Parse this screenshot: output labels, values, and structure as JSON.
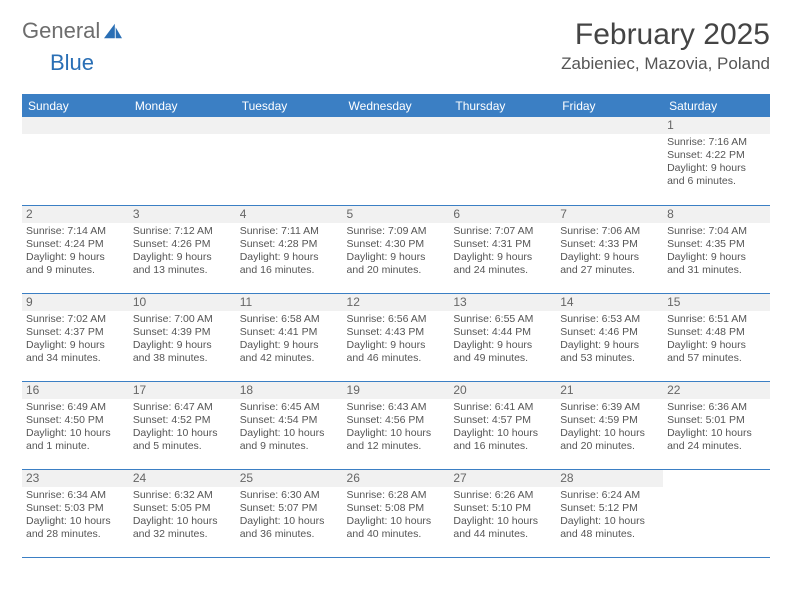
{
  "brand": {
    "part1": "General",
    "part2": "Blue"
  },
  "title": "February 2025",
  "location": "Zabieniec, Mazovia, Poland",
  "colors": {
    "accent": "#3b7fc4",
    "text": "#555555",
    "headGray": "#f1f1f1"
  },
  "dayHeaders": [
    "Sunday",
    "Monday",
    "Tuesday",
    "Wednesday",
    "Thursday",
    "Friday",
    "Saturday"
  ],
  "weeks": [
    [
      null,
      null,
      null,
      null,
      null,
      null,
      {
        "n": "1",
        "sr": "Sunrise: 7:16 AM",
        "ss": "Sunset: 4:22 PM",
        "dl": "Daylight: 9 hours and 6 minutes."
      }
    ],
    [
      {
        "n": "2",
        "sr": "Sunrise: 7:14 AM",
        "ss": "Sunset: 4:24 PM",
        "dl": "Daylight: 9 hours and 9 minutes."
      },
      {
        "n": "3",
        "sr": "Sunrise: 7:12 AM",
        "ss": "Sunset: 4:26 PM",
        "dl": "Daylight: 9 hours and 13 minutes."
      },
      {
        "n": "4",
        "sr": "Sunrise: 7:11 AM",
        "ss": "Sunset: 4:28 PM",
        "dl": "Daylight: 9 hours and 16 minutes."
      },
      {
        "n": "5",
        "sr": "Sunrise: 7:09 AM",
        "ss": "Sunset: 4:30 PM",
        "dl": "Daylight: 9 hours and 20 minutes."
      },
      {
        "n": "6",
        "sr": "Sunrise: 7:07 AM",
        "ss": "Sunset: 4:31 PM",
        "dl": "Daylight: 9 hours and 24 minutes."
      },
      {
        "n": "7",
        "sr": "Sunrise: 7:06 AM",
        "ss": "Sunset: 4:33 PM",
        "dl": "Daylight: 9 hours and 27 minutes."
      },
      {
        "n": "8",
        "sr": "Sunrise: 7:04 AM",
        "ss": "Sunset: 4:35 PM",
        "dl": "Daylight: 9 hours and 31 minutes."
      }
    ],
    [
      {
        "n": "9",
        "sr": "Sunrise: 7:02 AM",
        "ss": "Sunset: 4:37 PM",
        "dl": "Daylight: 9 hours and 34 minutes."
      },
      {
        "n": "10",
        "sr": "Sunrise: 7:00 AM",
        "ss": "Sunset: 4:39 PM",
        "dl": "Daylight: 9 hours and 38 minutes."
      },
      {
        "n": "11",
        "sr": "Sunrise: 6:58 AM",
        "ss": "Sunset: 4:41 PM",
        "dl": "Daylight: 9 hours and 42 minutes."
      },
      {
        "n": "12",
        "sr": "Sunrise: 6:56 AM",
        "ss": "Sunset: 4:43 PM",
        "dl": "Daylight: 9 hours and 46 minutes."
      },
      {
        "n": "13",
        "sr": "Sunrise: 6:55 AM",
        "ss": "Sunset: 4:44 PM",
        "dl": "Daylight: 9 hours and 49 minutes."
      },
      {
        "n": "14",
        "sr": "Sunrise: 6:53 AM",
        "ss": "Sunset: 4:46 PM",
        "dl": "Daylight: 9 hours and 53 minutes."
      },
      {
        "n": "15",
        "sr": "Sunrise: 6:51 AM",
        "ss": "Sunset: 4:48 PM",
        "dl": "Daylight: 9 hours and 57 minutes."
      }
    ],
    [
      {
        "n": "16",
        "sr": "Sunrise: 6:49 AM",
        "ss": "Sunset: 4:50 PM",
        "dl": "Daylight: 10 hours and 1 minute."
      },
      {
        "n": "17",
        "sr": "Sunrise: 6:47 AM",
        "ss": "Sunset: 4:52 PM",
        "dl": "Daylight: 10 hours and 5 minutes."
      },
      {
        "n": "18",
        "sr": "Sunrise: 6:45 AM",
        "ss": "Sunset: 4:54 PM",
        "dl": "Daylight: 10 hours and 9 minutes."
      },
      {
        "n": "19",
        "sr": "Sunrise: 6:43 AM",
        "ss": "Sunset: 4:56 PM",
        "dl": "Daylight: 10 hours and 12 minutes."
      },
      {
        "n": "20",
        "sr": "Sunrise: 6:41 AM",
        "ss": "Sunset: 4:57 PM",
        "dl": "Daylight: 10 hours and 16 minutes."
      },
      {
        "n": "21",
        "sr": "Sunrise: 6:39 AM",
        "ss": "Sunset: 4:59 PM",
        "dl": "Daylight: 10 hours and 20 minutes."
      },
      {
        "n": "22",
        "sr": "Sunrise: 6:36 AM",
        "ss": "Sunset: 5:01 PM",
        "dl": "Daylight: 10 hours and 24 minutes."
      }
    ],
    [
      {
        "n": "23",
        "sr": "Sunrise: 6:34 AM",
        "ss": "Sunset: 5:03 PM",
        "dl": "Daylight: 10 hours and 28 minutes."
      },
      {
        "n": "24",
        "sr": "Sunrise: 6:32 AM",
        "ss": "Sunset: 5:05 PM",
        "dl": "Daylight: 10 hours and 32 minutes."
      },
      {
        "n": "25",
        "sr": "Sunrise: 6:30 AM",
        "ss": "Sunset: 5:07 PM",
        "dl": "Daylight: 10 hours and 36 minutes."
      },
      {
        "n": "26",
        "sr": "Sunrise: 6:28 AM",
        "ss": "Sunset: 5:08 PM",
        "dl": "Daylight: 10 hours and 40 minutes."
      },
      {
        "n": "27",
        "sr": "Sunrise: 6:26 AM",
        "ss": "Sunset: 5:10 PM",
        "dl": "Daylight: 10 hours and 44 minutes."
      },
      {
        "n": "28",
        "sr": "Sunrise: 6:24 AM",
        "ss": "Sunset: 5:12 PM",
        "dl": "Daylight: 10 hours and 48 minutes."
      },
      null
    ]
  ]
}
